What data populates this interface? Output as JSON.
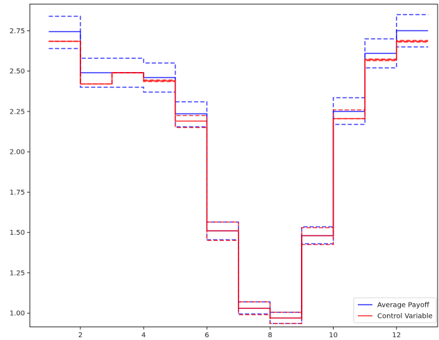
{
  "chart_data": {
    "type": "line",
    "step": "post",
    "x": [
      1,
      2,
      3,
      4,
      5,
      6,
      7,
      8,
      9,
      10,
      11,
      12,
      13
    ],
    "xlim": [
      0.4,
      13.3
    ],
    "ylim": [
      0.915,
      2.915
    ],
    "x_ticks": [
      2,
      4,
      6,
      8,
      10,
      12
    ],
    "y_ticks": [
      1.0,
      1.25,
      1.5,
      1.75,
      2.0,
      2.25,
      2.5,
      2.75
    ],
    "x_tick_labels": [
      "2",
      "4",
      "6",
      "8",
      "10",
      "12"
    ],
    "y_tick_labels": [
      "1.00",
      "1.25",
      "1.50",
      "1.75",
      "2.00",
      "2.25",
      "2.50",
      "2.75"
    ],
    "grid": false,
    "legend_position": "lower-right",
    "series": [
      {
        "name": "Average Payoff",
        "color": "#0000ff",
        "values": [
          2.745,
          2.49,
          2.49,
          2.46,
          2.235,
          1.51,
          1.03,
          0.97,
          1.48,
          2.25,
          2.61,
          2.75,
          2.75
        ],
        "lower": [
          2.64,
          2.4,
          2.4,
          2.37,
          2.155,
          1.455,
          0.995,
          0.935,
          1.43,
          2.17,
          2.52,
          2.65,
          2.65
        ],
        "upper": [
          2.84,
          2.58,
          2.58,
          2.55,
          2.31,
          1.565,
          1.07,
          1.005,
          1.535,
          2.335,
          2.7,
          2.85,
          2.85
        ]
      },
      {
        "name": "Control Variable",
        "color": "#ff0000",
        "values": [
          2.685,
          2.42,
          2.49,
          2.44,
          2.19,
          1.51,
          1.03,
          0.97,
          1.48,
          2.205,
          2.57,
          2.685,
          2.685
        ],
        "lower": [
          2.685,
          2.42,
          2.49,
          2.435,
          2.15,
          1.45,
          0.99,
          0.935,
          1.425,
          2.205,
          2.565,
          2.68,
          2.68
        ],
        "upper": [
          2.685,
          2.42,
          2.49,
          2.445,
          2.225,
          1.565,
          1.07,
          1.005,
          1.53,
          2.26,
          2.575,
          2.69,
          2.69
        ]
      }
    ]
  }
}
